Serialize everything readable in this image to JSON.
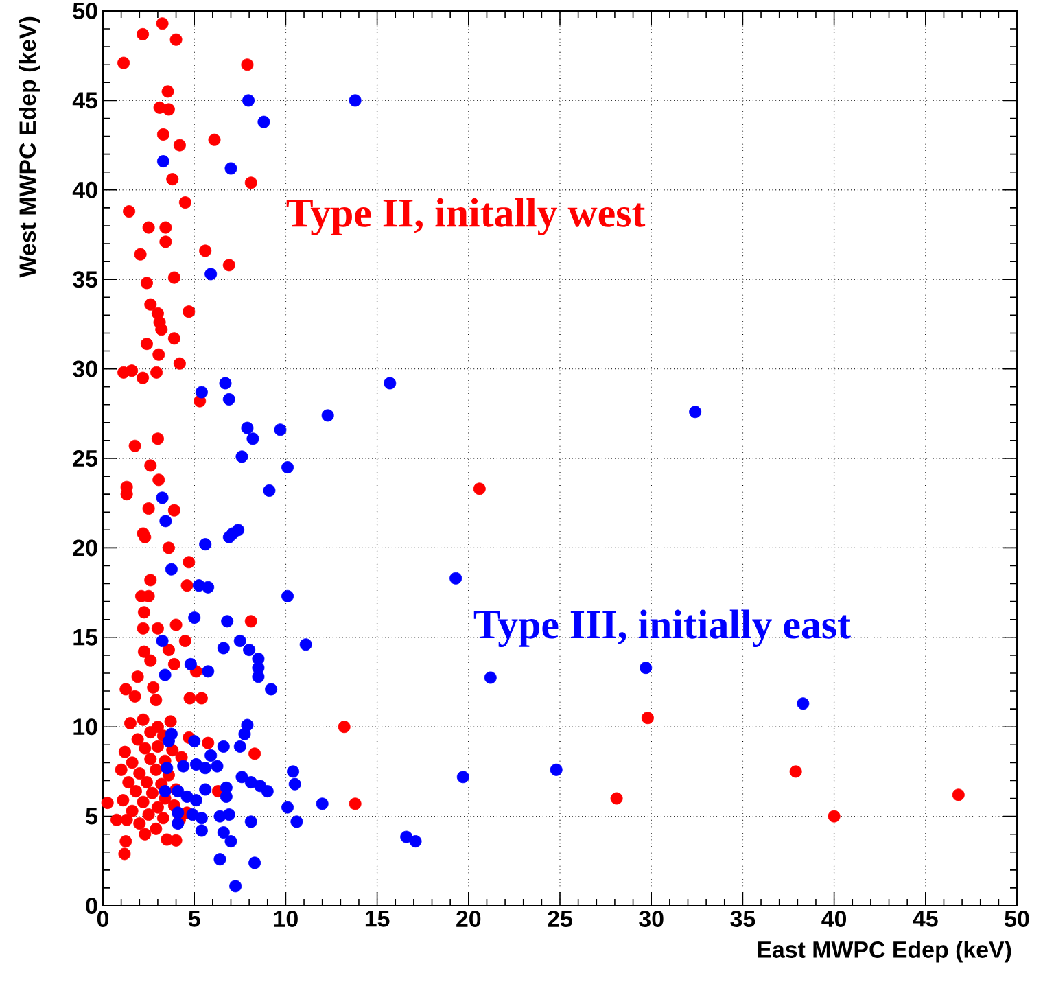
{
  "chart_data": {
    "type": "scatter",
    "xlabel": "East MWPC Edep (keV)",
    "ylabel": "West MWPC Edep (keV)",
    "xlim": [
      0,
      50
    ],
    "ylim": [
      0,
      50
    ],
    "xticks": [
      0,
      5,
      10,
      15,
      20,
      25,
      30,
      35,
      40,
      45,
      50
    ],
    "yticks": [
      0,
      5,
      10,
      15,
      20,
      25,
      30,
      35,
      40,
      45,
      50
    ],
    "grid": true,
    "marker": "circle",
    "series": [
      {
        "name": "Type II, initally west",
        "color": "#ff0000",
        "x": [
          3.25,
          2.18,
          4.0,
          1.13,
          7.9,
          3.55,
          3.1,
          3.6,
          3.3,
          4.2,
          6.1,
          3.8,
          8.1,
          4.5,
          1.43,
          2.5,
          3.43,
          3.43,
          2.05,
          5.6,
          6.9,
          3.9,
          2.4,
          2.6,
          3.0,
          3.1,
          3.2,
          4.7,
          2.4,
          3.9,
          3.05,
          4.2,
          1.13,
          1.58,
          2.18,
          2.93,
          5.3,
          3.0,
          1.75,
          2.6,
          3.05,
          1.3,
          1.3,
          2.5,
          3.9,
          2.2,
          2.3,
          3.6,
          4.7,
          2.6,
          4.6,
          2.1,
          2.5,
          2.25,
          2.2,
          3.0,
          4.0,
          4.5,
          8.1,
          2.25,
          2.6,
          3.6,
          3.9,
          5.1,
          1.9,
          1.25,
          1.75,
          2.75,
          2.9,
          4.75,
          5.4,
          13.2,
          8.3,
          5.75,
          13.8,
          0.25,
          6.3,
          4.0,
          1.25,
          1.18,
          0.75,
          20.6,
          29.8,
          28.1,
          37.9,
          40.0,
          46.8,
          1.5,
          2.2,
          3.0,
          3.7,
          2.6,
          3.3,
          1.9,
          1.2,
          2.3,
          3.0,
          3.8,
          4.3,
          1.6,
          2.6,
          3.4,
          1.0,
          2.0,
          2.9,
          3.6,
          1.4,
          2.4,
          3.2,
          4.0,
          1.8,
          2.7,
          3.4,
          1.1,
          2.2,
          3.0,
          3.9,
          1.6,
          2.5,
          3.3,
          1.3,
          2.0,
          2.9,
          4.2,
          2.3,
          3.5,
          4.6,
          4.7
        ],
        "values": [
          49.3,
          48.7,
          48.4,
          47.1,
          47.0,
          45.5,
          44.6,
          44.5,
          43.1,
          42.5,
          42.8,
          40.6,
          40.4,
          39.3,
          38.8,
          37.9,
          37.9,
          37.1,
          36.4,
          36.6,
          35.8,
          35.1,
          34.8,
          33.6,
          33.1,
          32.6,
          32.2,
          33.2,
          31.4,
          31.7,
          30.8,
          30.3,
          29.8,
          29.9,
          29.5,
          29.8,
          28.2,
          26.1,
          25.7,
          24.6,
          23.8,
          23.4,
          23.0,
          22.2,
          22.1,
          20.8,
          20.6,
          20.0,
          19.2,
          18.2,
          17.9,
          17.3,
          17.3,
          16.4,
          15.5,
          15.5,
          15.7,
          14.8,
          15.9,
          14.2,
          13.7,
          14.3,
          13.5,
          13.1,
          12.8,
          12.1,
          11.7,
          12.2,
          11.5,
          11.6,
          11.6,
          10.0,
          8.5,
          9.1,
          5.7,
          5.75,
          6.4,
          3.65,
          3.6,
          2.9,
          4.8,
          23.3,
          10.5,
          6.0,
          7.5,
          5.0,
          6.2,
          10.2,
          10.4,
          10.0,
          10.3,
          9.7,
          9.5,
          9.3,
          8.6,
          8.8,
          8.9,
          8.7,
          8.3,
          8.0,
          8.2,
          8.1,
          7.6,
          7.4,
          7.6,
          7.3,
          6.9,
          6.9,
          6.8,
          6.5,
          6.4,
          6.3,
          6.0,
          5.9,
          5.8,
          5.5,
          5.6,
          5.3,
          5.1,
          4.9,
          4.8,
          4.6,
          4.3,
          4.8,
          4.0,
          3.7,
          5.2,
          9.4
        ]
      },
      {
        "name": "Type III, initially east",
        "color": "#0000ff",
        "x": [
          7.96,
          13.8,
          8.8,
          3.3,
          7.0,
          5.9,
          5.4,
          6.7,
          6.9,
          12.3,
          7.9,
          8.2,
          9.7,
          7.6,
          10.1,
          9.1,
          3.25,
          3.43,
          5.6,
          6.9,
          7.1,
          7.4,
          3.75,
          5.25,
          5.75,
          10.1,
          5.0,
          6.8,
          3.25,
          7.5,
          8.0,
          8.5,
          8.5,
          8.5,
          6.6,
          11.1,
          4.8,
          5.75,
          3.4,
          9.2,
          7.9,
          7.75,
          7.5,
          3.75,
          3.6,
          5.0,
          6.6,
          5.9,
          6.25,
          3.5,
          4.4,
          5.1,
          5.6,
          7.6,
          8.1,
          8.6,
          9.0,
          10.4,
          10.5,
          6.75,
          6.75,
          3.4,
          4.1,
          4.6,
          5.1,
          5.6,
          10.1,
          12.0,
          10.6,
          4.1,
          4.9,
          5.4,
          4.1,
          5.4,
          6.4,
          6.9,
          8.1,
          6.6,
          7.0,
          6.4,
          8.3,
          7.25,
          15.7,
          32.4,
          19.3,
          21.2,
          29.7,
          38.3,
          19.7,
          24.8,
          16.6,
          17.1
        ],
        "values": [
          45.0,
          45.0,
          43.8,
          41.6,
          41.2,
          35.3,
          28.7,
          29.2,
          28.3,
          27.4,
          26.7,
          26.1,
          26.6,
          25.1,
          24.5,
          23.2,
          22.8,
          21.5,
          20.2,
          20.6,
          20.8,
          21.0,
          18.8,
          17.9,
          17.8,
          17.3,
          16.1,
          15.9,
          14.8,
          14.8,
          14.3,
          13.8,
          13.3,
          12.8,
          14.4,
          14.6,
          13.5,
          13.1,
          12.9,
          12.1,
          10.1,
          9.6,
          8.9,
          9.6,
          9.2,
          9.2,
          8.9,
          8.4,
          7.8,
          7.7,
          7.8,
          7.9,
          7.7,
          7.2,
          6.9,
          6.7,
          6.4,
          7.5,
          6.8,
          6.6,
          6.1,
          6.4,
          6.4,
          6.1,
          5.9,
          6.5,
          5.5,
          5.7,
          4.7,
          5.2,
          5.1,
          4.9,
          4.6,
          4.2,
          5.0,
          5.1,
          4.7,
          4.1,
          3.6,
          2.6,
          2.4,
          1.1,
          29.2,
          27.6,
          18.3,
          12.75,
          13.3,
          11.3,
          7.2,
          7.6,
          3.85,
          3.6
        ]
      }
    ]
  }
}
